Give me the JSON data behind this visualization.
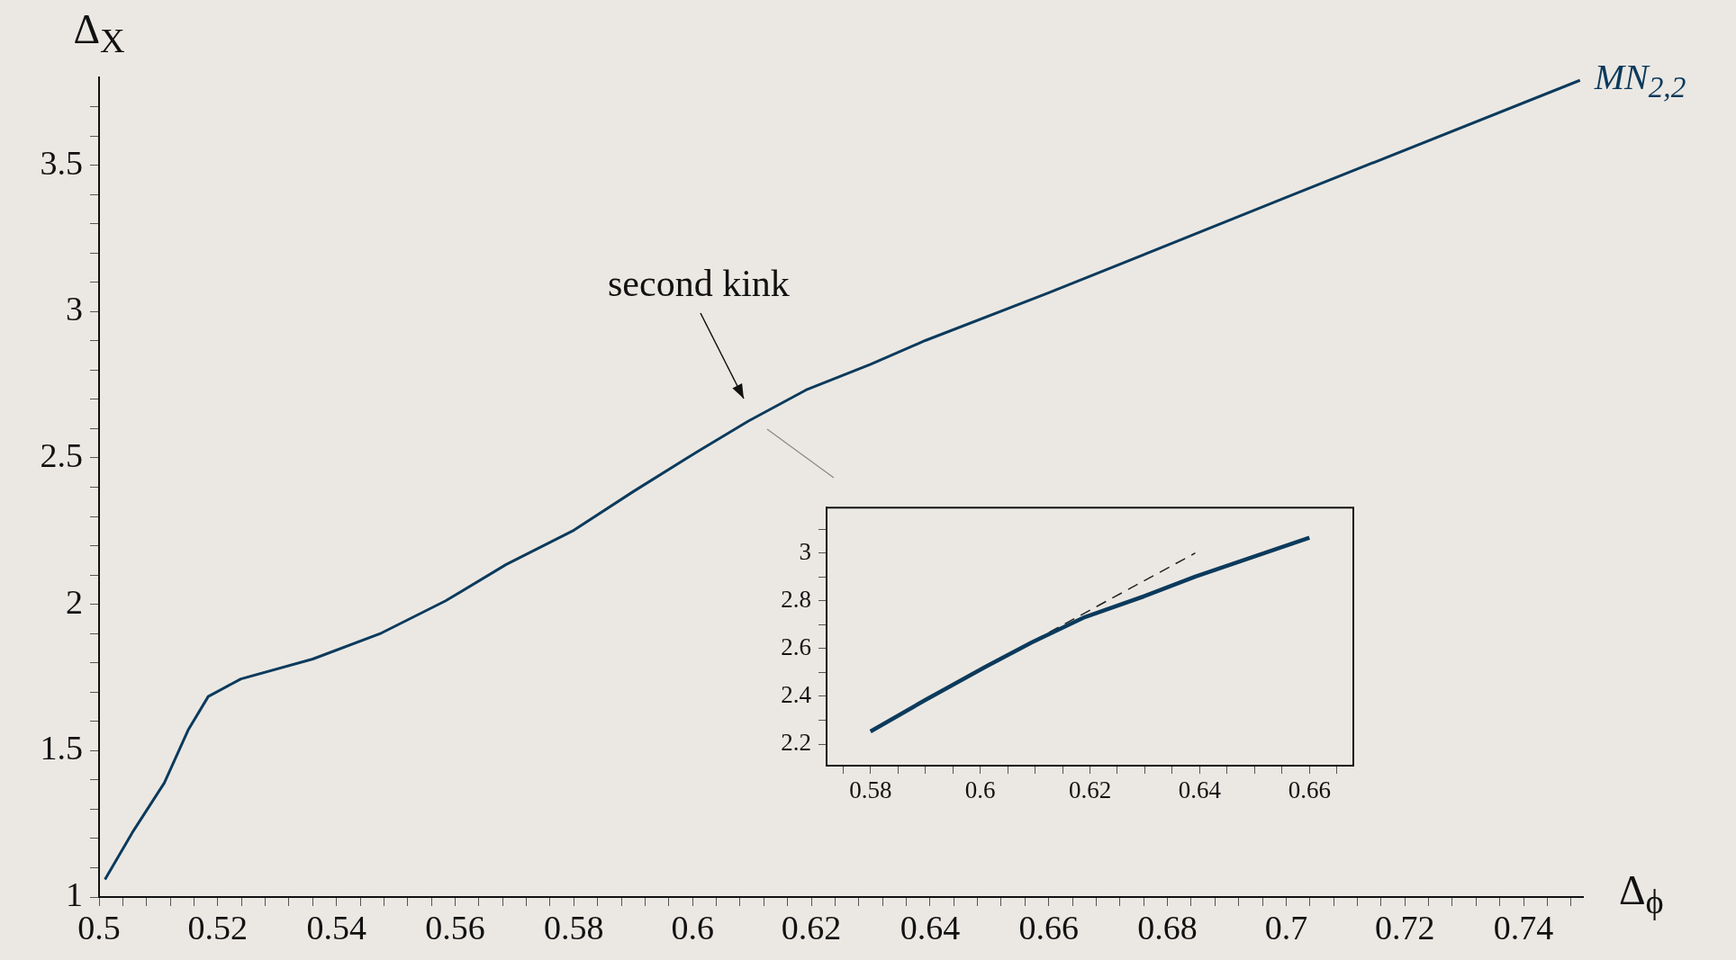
{
  "chart_data": [
    {
      "type": "line",
      "xlabel": "Δ$_{ϕ}$",
      "ylabel": "Δ$_{X}$",
      "x": [
        0.501,
        0.5056,
        0.511,
        0.515,
        0.5184,
        0.5239,
        0.536,
        0.5476,
        0.5584,
        0.5686,
        0.58,
        0.59,
        0.601,
        0.6094,
        0.6191,
        0.63,
        0.6392,
        0.66,
        0.7,
        0.7495
      ],
      "series": [
        {
          "name": "MN$_{2,2}$",
          "color": "#0b3a5c",
          "values": [
            1.06,
            1.22,
            1.39,
            1.57,
            1.685,
            1.745,
            1.813,
            1.902,
            2.012,
            2.136,
            2.253,
            2.385,
            2.524,
            2.626,
            2.732,
            2.82,
            2.901,
            3.064,
            3.39,
            3.79
          ]
        }
      ],
      "xlim": [
        0.5,
        0.75
      ],
      "ylim": [
        1,
        3.8
      ],
      "xticks": [
        0.5,
        {
          "value": 0.504,
          "label": null
        },
        {
          "value": 0.508,
          "label": null
        },
        {
          "value": 0.512,
          "label": null
        },
        {
          "value": 0.516,
          "label": null
        },
        0.52,
        {
          "value": 0.524,
          "label": null
        },
        {
          "value": 0.528,
          "label": null
        },
        {
          "value": 0.532,
          "label": null
        },
        {
          "value": 0.536,
          "label": null
        },
        0.54,
        {
          "value": 0.544,
          "label": null
        },
        {
          "value": 0.548,
          "label": null
        },
        {
          "value": 0.552,
          "label": null
        },
        {
          "value": 0.556,
          "label": null
        },
        0.56,
        {
          "value": 0.564,
          "label": null
        },
        {
          "value": 0.568,
          "label": null
        },
        {
          "value": 0.572,
          "label": null
        },
        {
          "value": 0.576,
          "label": null
        },
        0.58,
        {
          "value": 0.584,
          "label": null
        },
        {
          "value": 0.588,
          "label": null
        },
        {
          "value": 0.592,
          "label": null
        },
        {
          "value": 0.596,
          "label": null
        },
        0.6,
        {
          "value": 0.604,
          "label": null
        },
        {
          "value": 0.608,
          "label": null
        },
        {
          "value": 0.612,
          "label": null
        },
        {
          "value": 0.616,
          "label": null
        },
        0.62,
        {
          "value": 0.624,
          "label": null
        },
        {
          "value": 0.628,
          "label": null
        },
        {
          "value": 0.632,
          "label": null
        },
        {
          "value": 0.636,
          "label": null
        },
        0.64,
        {
          "value": 0.644,
          "label": null
        },
        {
          "value": 0.648,
          "label": null
        },
        {
          "value": 0.652,
          "label": null
        },
        {
          "value": 0.656,
          "label": null
        },
        0.66,
        {
          "value": 0.664,
          "label": null
        },
        {
          "value": 0.668,
          "label": null
        },
        {
          "value": 0.672,
          "label": null
        },
        {
          "value": 0.676,
          "label": null
        },
        0.68,
        {
          "value": 0.684,
          "label": null
        },
        {
          "value": 0.688,
          "label": null
        },
        {
          "value": 0.692,
          "label": null
        },
        {
          "value": 0.696,
          "label": null
        },
        0.7,
        {
          "value": 0.704,
          "label": null
        },
        {
          "value": 0.708,
          "label": null
        },
        {
          "value": 0.712,
          "label": null
        },
        {
          "value": 0.716,
          "label": null
        },
        0.72,
        {
          "value": 0.724,
          "label": null
        },
        {
          "value": 0.728,
          "label": null
        },
        {
          "value": 0.732,
          "label": null
        },
        {
          "value": 0.736,
          "label": null
        },
        0.74,
        {
          "value": 0.744,
          "label": null
        },
        {
          "value": 0.748,
          "label": null
        }
      ],
      "yticks": [
        1,
        {
          "value": 1.1,
          "label": null
        },
        {
          "value": 1.2,
          "label": null
        },
        {
          "value": 1.3,
          "label": null
        },
        {
          "value": 1.4,
          "label": null
        },
        1.5,
        {
          "value": 1.6,
          "label": null
        },
        {
          "value": 1.7,
          "label": null
        },
        {
          "value": 1.8,
          "label": null
        },
        {
          "value": 1.9,
          "label": null
        },
        2,
        {
          "value": 2.1,
          "label": null
        },
        {
          "value": 2.2,
          "label": null
        },
        {
          "value": 2.3,
          "label": null
        },
        {
          "value": 2.4,
          "label": null
        },
        2.5,
        {
          "value": 2.6,
          "label": null
        },
        {
          "value": 2.7,
          "label": null
        },
        {
          "value": 2.8,
          "label": null
        },
        {
          "value": 2.9,
          "label": null
        },
        3,
        {
          "value": 3.1,
          "label": null
        },
        {
          "value": 3.2,
          "label": null
        },
        {
          "value": 3.3,
          "label": null
        },
        {
          "value": 3.4,
          "label": null
        },
        3.5,
        {
          "value": 3.6,
          "label": null
        },
        {
          "value": 3.7,
          "label": null
        }
      ],
      "annotations": [
        "second kink"
      ],
      "legend": false
    },
    {
      "type": "line",
      "series": [
        {
          "color": "#0b3a5c",
          "x": [
            0.58,
            0.59,
            0.601,
            0.6094,
            0.6191,
            0.63,
            0.6392,
            0.66
          ],
          "values": [
            2.253,
            2.385,
            2.524,
            2.626,
            2.732,
            2.82,
            2.901,
            3.064
          ]
        },
        {
          "color": "#222222",
          "line_style": "dashed",
          "x": [
            0.601,
            0.6392
          ],
          "values": [
            2.524,
            3.0
          ]
        }
      ],
      "xlim": [
        0.572,
        0.668
      ],
      "ylim": [
        2.11,
        3.19
      ],
      "xticks": [
        {
          "value": 0.575,
          "label": null
        },
        0.58,
        {
          "value": 0.585,
          "label": null
        },
        {
          "value": 0.59,
          "label": null
        },
        {
          "value": 0.595,
          "label": null
        },
        0.6,
        {
          "value": 0.605,
          "label": null
        },
        {
          "value": 0.61,
          "label": null
        },
        {
          "value": 0.615,
          "label": null
        },
        0.62,
        {
          "value": 0.625,
          "label": null
        },
        {
          "value": 0.63,
          "label": null
        },
        {
          "value": 0.635,
          "label": null
        },
        0.64,
        {
          "value": 0.645,
          "label": null
        },
        {
          "value": 0.65,
          "label": null
        },
        {
          "value": 0.655,
          "label": null
        },
        0.66,
        {
          "value": 0.665,
          "label": null
        }
      ],
      "yticks": [
        2.2,
        {
          "value": 2.3,
          "label": null
        },
        2.4,
        {
          "value": 2.5,
          "label": null
        },
        2.6,
        {
          "value": 2.7,
          "label": null
        },
        2.8,
        {
          "value": 2.9,
          "label": null
        },
        3,
        {
          "value": 3.1,
          "label": null
        }
      ],
      "legend": false
    }
  ]
}
